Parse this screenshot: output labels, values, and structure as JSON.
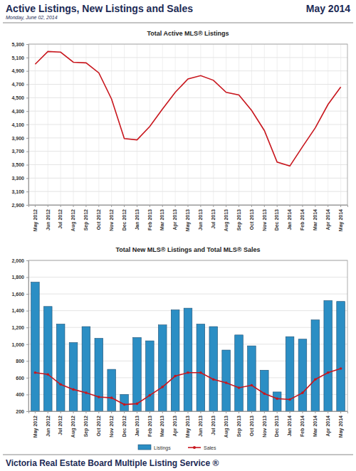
{
  "header": {
    "title": "Active Listings, New Listings and Sales",
    "period": "May 2014",
    "date": "Monday, June 02, 2014"
  },
  "footer": {
    "text": "Victoria Real Estate Board Multiple Listing Service ®"
  },
  "chart_data": [
    {
      "type": "line",
      "title": "Total Active MLS® Listings",
      "categories": [
        "May 2012",
        "Jun 2012",
        "Jul 2012",
        "Aug 2012",
        "Sep 2012",
        "Oct 2012",
        "Nov 2012",
        "Dec 2012",
        "Jan 2013",
        "Feb 2013",
        "Mar 2013",
        "Apr 2013",
        "May 2013",
        "Jun 2013",
        "Jul 2013",
        "Aug 2013",
        "Sep 2013",
        "Oct 2013",
        "Nov 2013",
        "Dec 2013",
        "Jan 2014",
        "Feb 2014",
        "Mar 2014",
        "Apr 2014",
        "May 2014"
      ],
      "values": [
        5000,
        5190,
        5180,
        5030,
        5020,
        4870,
        4480,
        3890,
        3870,
        4070,
        4330,
        4580,
        4780,
        4830,
        4760,
        4580,
        4540,
        4310,
        4010,
        3540,
        3480,
        3770,
        4050,
        4400,
        4660
      ],
      "color": "#c8161d",
      "ylim": [
        2900,
        5300
      ],
      "yticks": [
        {
          "value": 2900,
          "label": "2,900"
        },
        {
          "value": 3100,
          "label": "3,100"
        },
        {
          "value": 3300,
          "label": "3,300"
        },
        {
          "value": 3500,
          "label": "3,500"
        },
        {
          "value": 3700,
          "label": "3,700"
        },
        {
          "value": 3900,
          "label": "3,900"
        },
        {
          "value": 4100,
          "label": "4,100"
        },
        {
          "value": 4300,
          "label": "4,300"
        },
        {
          "value": 4500,
          "label": "4,500"
        },
        {
          "value": 4700,
          "label": "4,700"
        },
        {
          "value": 4900,
          "label": "4,900"
        },
        {
          "value": 5100,
          "label": "5,100"
        },
        {
          "value": 5300,
          "label": "5,300"
        }
      ],
      "grid": true
    },
    {
      "type": "bar",
      "title": "Total New MLS® Listings and Total MLS® Sales",
      "categories": [
        "May 2012",
        "Jun 2012",
        "Jul 2012",
        "Aug 2012",
        "Sep 2012",
        "Oct 2012",
        "Nov 2012",
        "Dec 2012",
        "Jan 2013",
        "Feb 2013",
        "Mar 2013",
        "Apr 2013",
        "May 2013",
        "Jun 2013",
        "Jul 2013",
        "Aug 2013",
        "Sep 2013",
        "Oct 2013",
        "Nov 2013",
        "Dec 2013",
        "Jan 2014",
        "Feb 2014",
        "Mar 2014",
        "Apr 2014",
        "May 2014"
      ],
      "series": [
        {
          "name": "Listings",
          "type": "bar",
          "color": "#2b8ec4",
          "values": [
            1740,
            1450,
            1240,
            1020,
            1210,
            1070,
            700,
            400,
            1080,
            1040,
            1230,
            1410,
            1430,
            1240,
            1210,
            930,
            1110,
            980,
            690,
            430,
            1090,
            1060,
            1290,
            1520,
            1510
          ]
        },
        {
          "name": "Sales",
          "type": "line",
          "color": "#c8161d",
          "marker": "circle",
          "values": [
            660,
            640,
            520,
            460,
            420,
            370,
            360,
            280,
            290,
            390,
            490,
            620,
            660,
            660,
            580,
            540,
            480,
            510,
            410,
            350,
            340,
            420,
            580,
            660,
            710
          ]
        }
      ],
      "ylim": [
        200,
        2000
      ],
      "yticks": [
        200,
        400,
        600,
        800,
        {
          "value": 1000,
          "label": "1,000"
        },
        {
          "value": 1200,
          "label": "1,200"
        },
        {
          "value": 1400,
          "label": "1,400"
        },
        {
          "value": 1600,
          "label": "1,600"
        },
        {
          "value": 1800,
          "label": "1,800"
        },
        {
          "value": 2000,
          "label": "2,000"
        }
      ],
      "grid": true,
      "legend": "bottom"
    }
  ]
}
